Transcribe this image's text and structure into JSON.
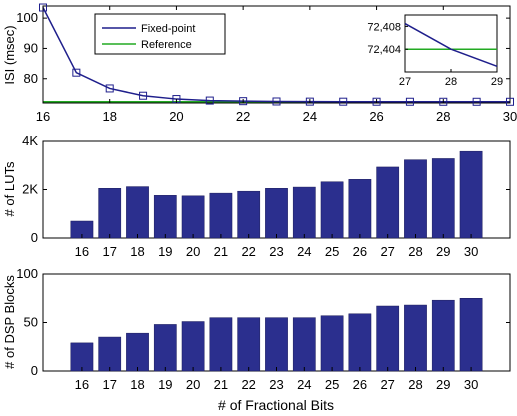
{
  "chart_data": [
    {
      "type": "line",
      "ylabel": "ISI (msec)",
      "xlim": [
        16,
        30
      ],
      "ylim": [
        72,
        104
      ],
      "xticks": [
        16,
        18,
        20,
        22,
        24,
        26,
        28,
        30
      ],
      "yticks": [
        80,
        90,
        100
      ],
      "legend": "top-left",
      "series": [
        {
          "name": "Fixed-point",
          "color": "#1f1f8c",
          "marker": "square",
          "x": [
            16,
            17,
            18,
            19,
            20,
            21,
            22,
            23,
            24,
            25,
            26,
            27,
            28,
            29,
            30
          ],
          "y": [
            103.5,
            82.0,
            76.8,
            74.4,
            73.3,
            72.8,
            72.6,
            72.5,
            72.45,
            72.43,
            72.42,
            72.41,
            72.404,
            72.401,
            72.4
          ]
        },
        {
          "name": "Reference",
          "color": "#22aa22",
          "x": [
            16,
            30
          ],
          "y": [
            72.404,
            72.404
          ]
        }
      ],
      "inset": {
        "xlim": [
          27,
          29
        ],
        "ylim": [
          72.4,
          72.41
        ],
        "xticks": [
          27,
          28,
          29
        ],
        "yticks": [
          72.404,
          72.408
        ],
        "ytick_labels": [
          "72,404",
          "72,408"
        ],
        "fixed": {
          "x": [
            27,
            28,
            29
          ],
          "y": [
            72.4085,
            72.404,
            72.401
          ]
        },
        "reference": {
          "x": [
            27,
            29
          ],
          "y": [
            72.404,
            72.404
          ]
        }
      }
    },
    {
      "type": "bar",
      "ylabel": "# of LUTs",
      "categories": [
        "16",
        "17",
        "18",
        "19",
        "20",
        "21",
        "22",
        "23",
        "24",
        "25",
        "26",
        "27",
        "28",
        "29",
        "30"
      ],
      "values": [
        700,
        2050,
        2120,
        1760,
        1740,
        1850,
        1930,
        2050,
        2100,
        2320,
        2420,
        2930,
        3230,
        3280,
        3580
      ],
      "ylim": [
        0,
        4000
      ],
      "yticks": [
        0,
        2000,
        4000
      ],
      "ytick_labels": [
        "0",
        "2K",
        "4K"
      ],
      "color": "#2b2f8e"
    },
    {
      "type": "bar",
      "ylabel": "# of DSP Blocks",
      "xlabel": "# of Fractional Bits",
      "categories": [
        "16",
        "17",
        "18",
        "19",
        "20",
        "21",
        "22",
        "23",
        "24",
        "25",
        "26",
        "27",
        "28",
        "29",
        "30"
      ],
      "values": [
        29,
        35,
        39,
        48,
        51,
        55,
        55,
        55,
        55,
        57,
        59,
        67,
        68,
        73,
        75
      ],
      "ylim": [
        0,
        100
      ],
      "yticks": [
        0,
        50,
        100
      ],
      "color": "#2b2f8e"
    }
  ]
}
